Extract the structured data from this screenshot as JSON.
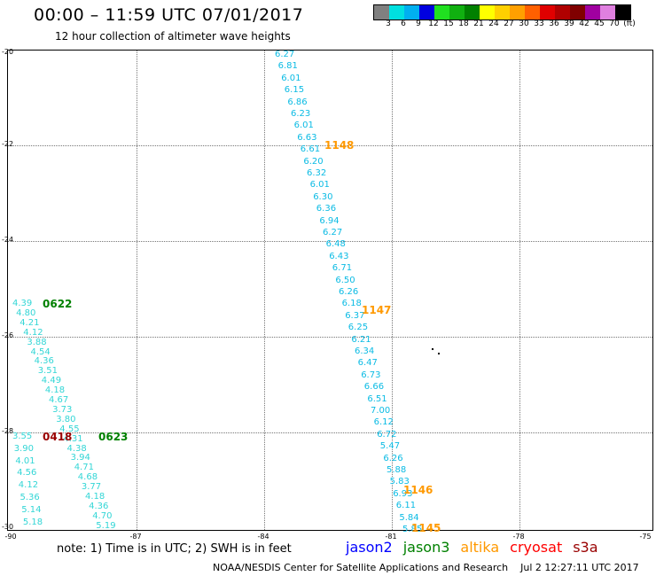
{
  "header": {
    "title": "00:00 – 11:59 UTC 07/01/2017",
    "subtitle": "12 hour collection of altimeter wave heights"
  },
  "legend": {
    "colors": [
      "#808080",
      "#00e0e0",
      "#00b0f0",
      "#0000e0",
      "#20e020",
      "#10b010",
      "#008000",
      "#ffff00",
      "#ffd000",
      "#ffa000",
      "#ff6000",
      "#e00000",
      "#b00000",
      "#800000",
      "#a000a0",
      "#e080e0",
      "#000000"
    ],
    "labels": [
      "3",
      "6",
      "9",
      "12",
      "15",
      "18",
      "21",
      "24",
      "27",
      "30",
      "33",
      "36",
      "39",
      "42",
      "45",
      "70",
      "(ft)"
    ]
  },
  "axes": {
    "lat_labels": [
      "-20",
      "-22",
      "-24",
      "-26",
      "-28",
      "-30"
    ],
    "lon_labels": [
      "-90",
      "-87",
      "-84",
      "-81",
      "-78",
      "-75"
    ]
  },
  "tracks": {
    "jason2_east": [
      "6.27",
      "6.81",
      "6.01",
      "6.15",
      "6.86",
      "6.23",
      "6.01",
      "6.63",
      "6.61",
      "6.20",
      "6.32",
      "6.01",
      "6.30",
      "6.36",
      "6.94",
      "6.27",
      "6.48",
      "6.43",
      "6.71",
      "6.50",
      "6.26",
      "6.18",
      "6.37",
      "6.25",
      "6.21",
      "6.34",
      "6.47",
      "6.73",
      "6.66",
      "6.51",
      "7.00",
      "6.12",
      "6.72",
      "5.47",
      "6.26",
      "5.88",
      "5.83",
      "6.93",
      "6.11",
      "5.84",
      "5.85"
    ],
    "west_a": [
      "4.39",
      "4.80",
      "4.21",
      "4.12",
      "3.88",
      "4.54",
      "4.36",
      "3.51",
      "4.49",
      "4.18",
      "4.67",
      "3.73",
      "3.80",
      "4.55",
      "4.31",
      "4.38",
      "3.94",
      "4.71",
      "4.68",
      "3.77",
      "4.18",
      "4.36",
      "4.70",
      "5.19"
    ],
    "west_b": [
      "3.55",
      "3.90",
      "4.01",
      "4.56",
      "4.12",
      "5.36",
      "5.14",
      "5.18"
    ]
  },
  "pass_labels": [
    {
      "text": "1148",
      "color": "#ff9900"
    },
    {
      "text": "1147",
      "color": "#ff9900"
    },
    {
      "text": "1146",
      "color": "#ff9900"
    },
    {
      "text": "1145",
      "color": "#ff9900"
    },
    {
      "text": "0622",
      "color": "#008000"
    },
    {
      "text": "0623",
      "color": "#008000"
    },
    {
      "text": "0418",
      "color": "#990000"
    }
  ],
  "note": "note: 1) Time is in UTC; 2) SWH is in feet",
  "satellites": [
    {
      "name": "jason2",
      "color": "#0000ff"
    },
    {
      "name": "jason3",
      "color": "#008000"
    },
    {
      "name": "altika",
      "color": "#ff9900"
    },
    {
      "name": "cryosat",
      "color": "#ff0000"
    },
    {
      "name": "s3a",
      "color": "#990000"
    }
  ],
  "footer": {
    "credit": "NOAA/NESDIS Center for Satellite Applications and Research",
    "timestamp": "Jul  2 12:27:11 UTC 2017"
  }
}
